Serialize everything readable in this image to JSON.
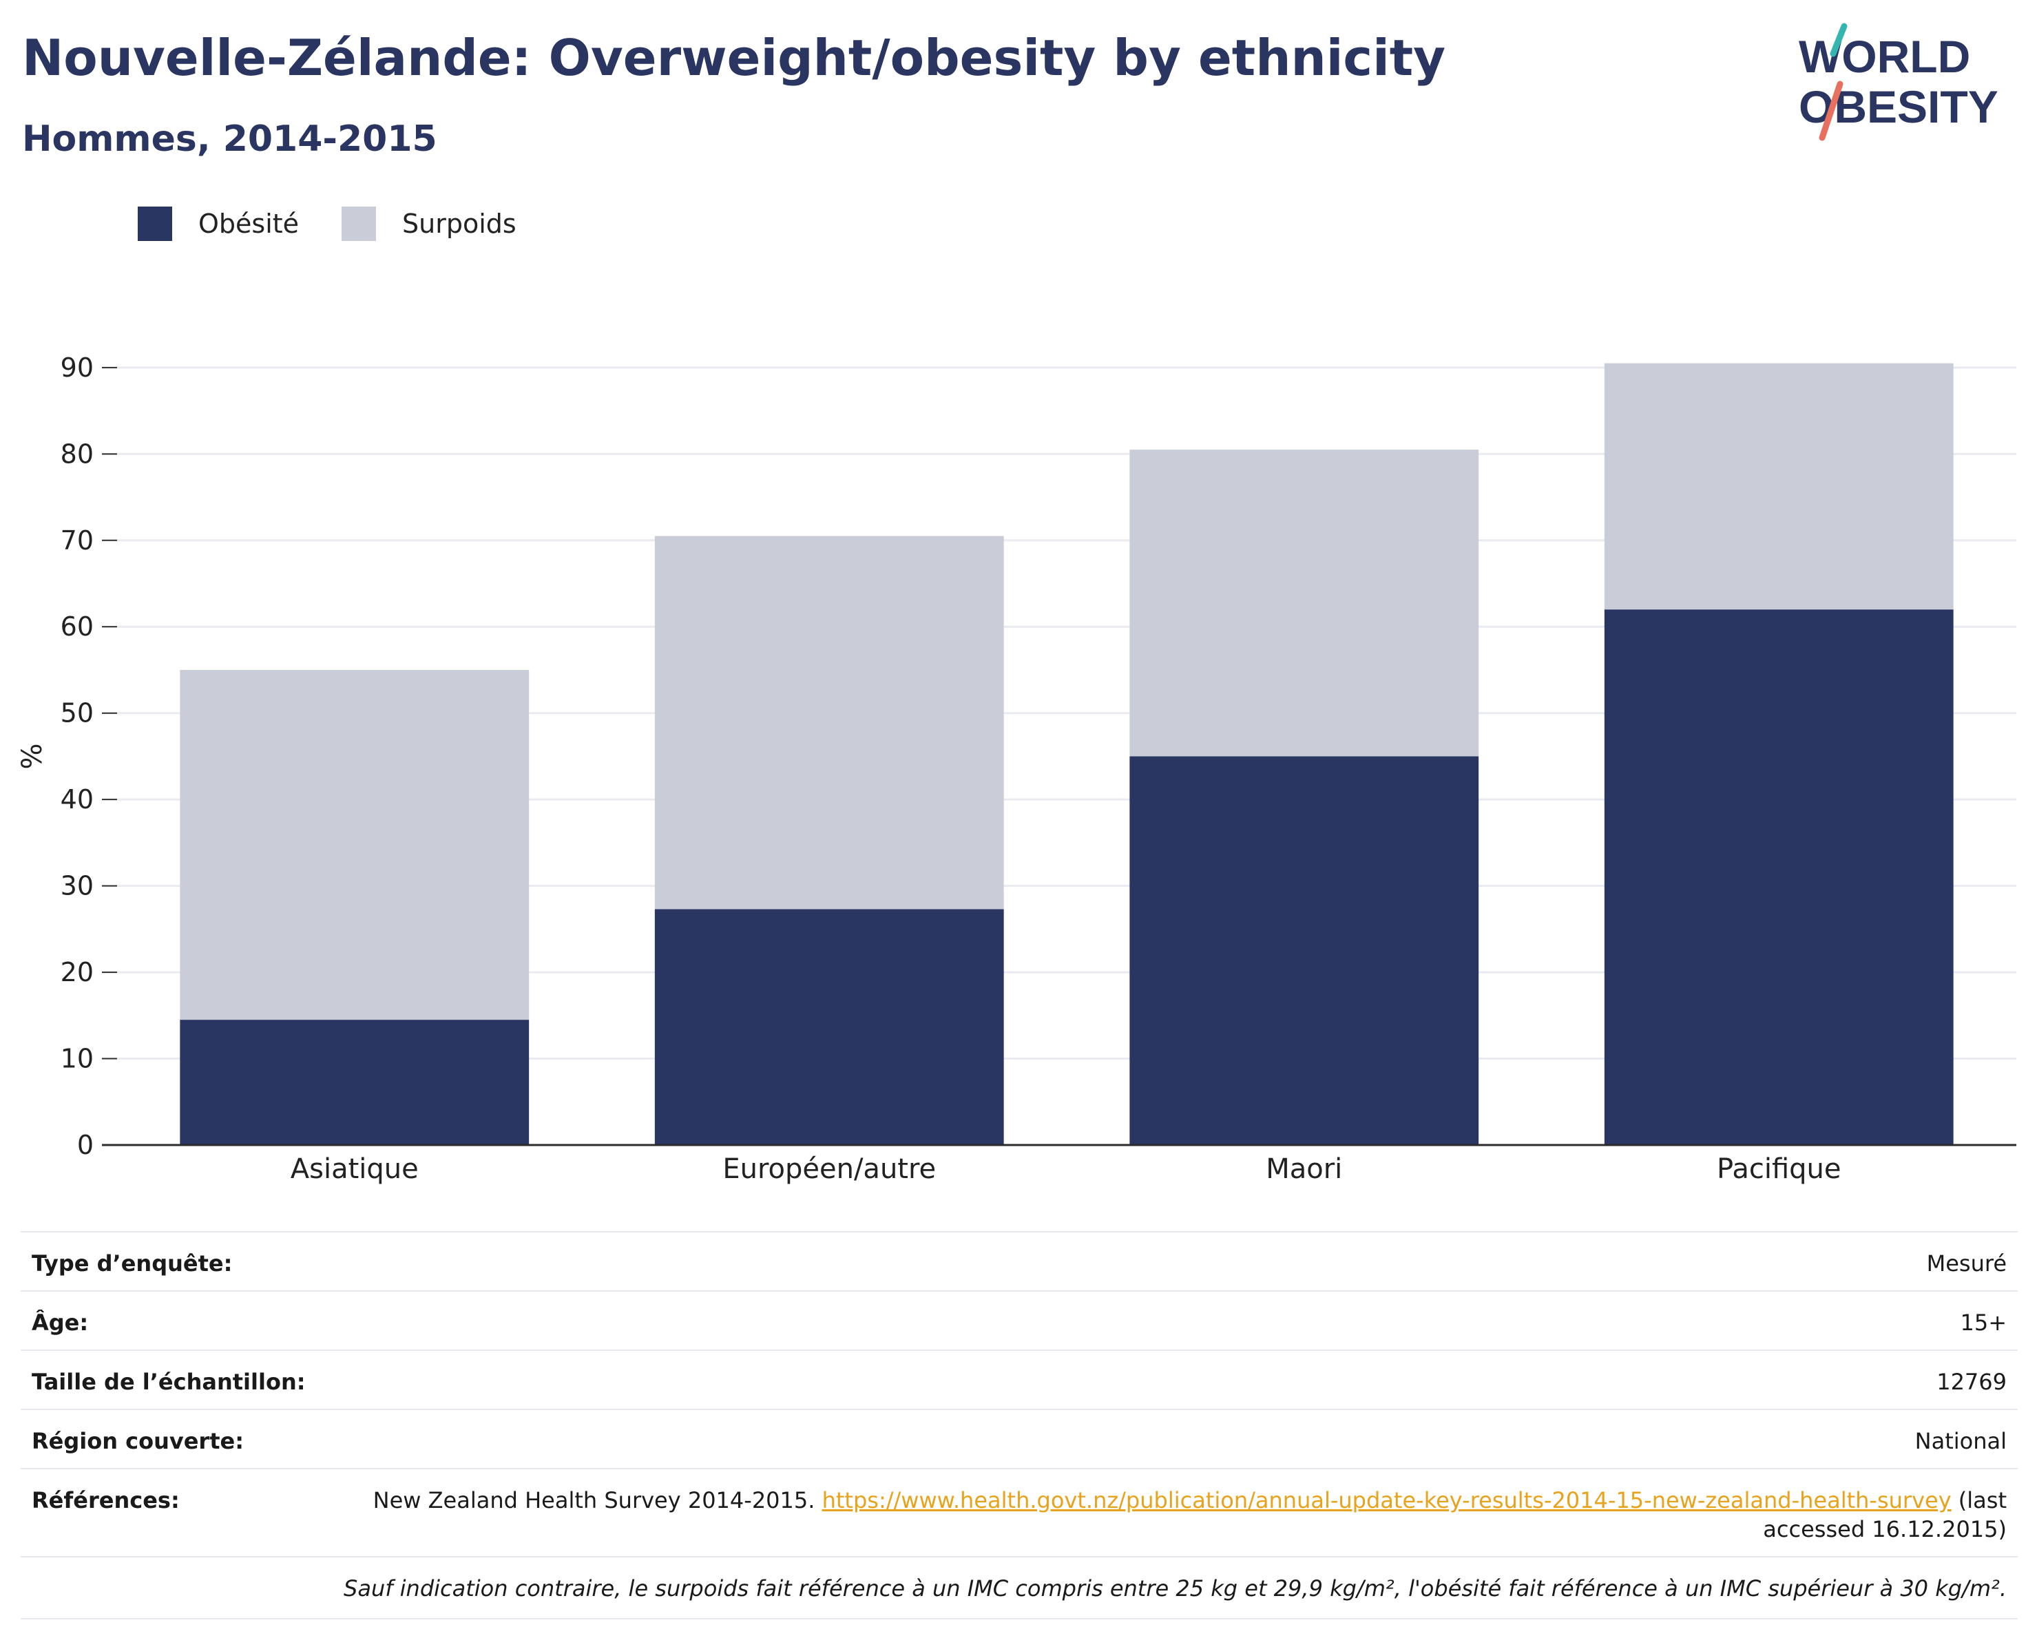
{
  "header": {
    "title": "Nouvelle-Zélande: Overweight/obesity by ethnicity",
    "subtitle": "Hommes, 2014-2015"
  },
  "logo": {
    "line1": "WORLD",
    "line2": "OBESITY"
  },
  "colors": {
    "obesity": "#2a3662",
    "overweight": "#cacdd8",
    "grid": "#e9ebf0",
    "axis": "#2b2b2b",
    "link": "#e8a21b",
    "brand": "#2a3561",
    "logo_teal": "#34b5b0",
    "logo_coral": "#e8705f"
  },
  "chart_data": {
    "type": "bar",
    "stacked": true,
    "categories": [
      "Asiatique",
      "Européen/autre",
      "Maori",
      "Pacifique"
    ],
    "series": [
      {
        "name": "Obésité",
        "values": [
          14.5,
          27.3,
          45.0,
          62.0
        ]
      },
      {
        "name": "Surpoids",
        "values": [
          40.5,
          43.2,
          35.5,
          28.5
        ]
      }
    ],
    "ylabel": "%",
    "ylim": [
      0,
      90
    ],
    "yticks": [
      0,
      10,
      20,
      30,
      40,
      50,
      60,
      70,
      80,
      90
    ],
    "grid": true,
    "legend_position": "top-left"
  },
  "info_table": {
    "rows": [
      {
        "label": "Type d’enquête:",
        "value": "Mesuré"
      },
      {
        "label": "Âge:",
        "value": "15+"
      },
      {
        "label": "Taille de l’échantillon:",
        "value": "12769"
      },
      {
        "label": "Région couverte:",
        "value": "National"
      }
    ],
    "references": {
      "label": "Références:",
      "text": "New Zealand Health Survey 2014-2015. ",
      "link": "https://www.health.govt.nz/publication/annual-update-key-results-2014-15-new-zealand-health-survey",
      "suffix": " (last accessed 16.12.2015)"
    },
    "note": "Sauf indication contraire, le surpoids fait référence à un IMC compris entre 25 kg et 29,9 kg/m², l'obésité fait référence à un IMC supérieur à 30 kg/m²."
  }
}
